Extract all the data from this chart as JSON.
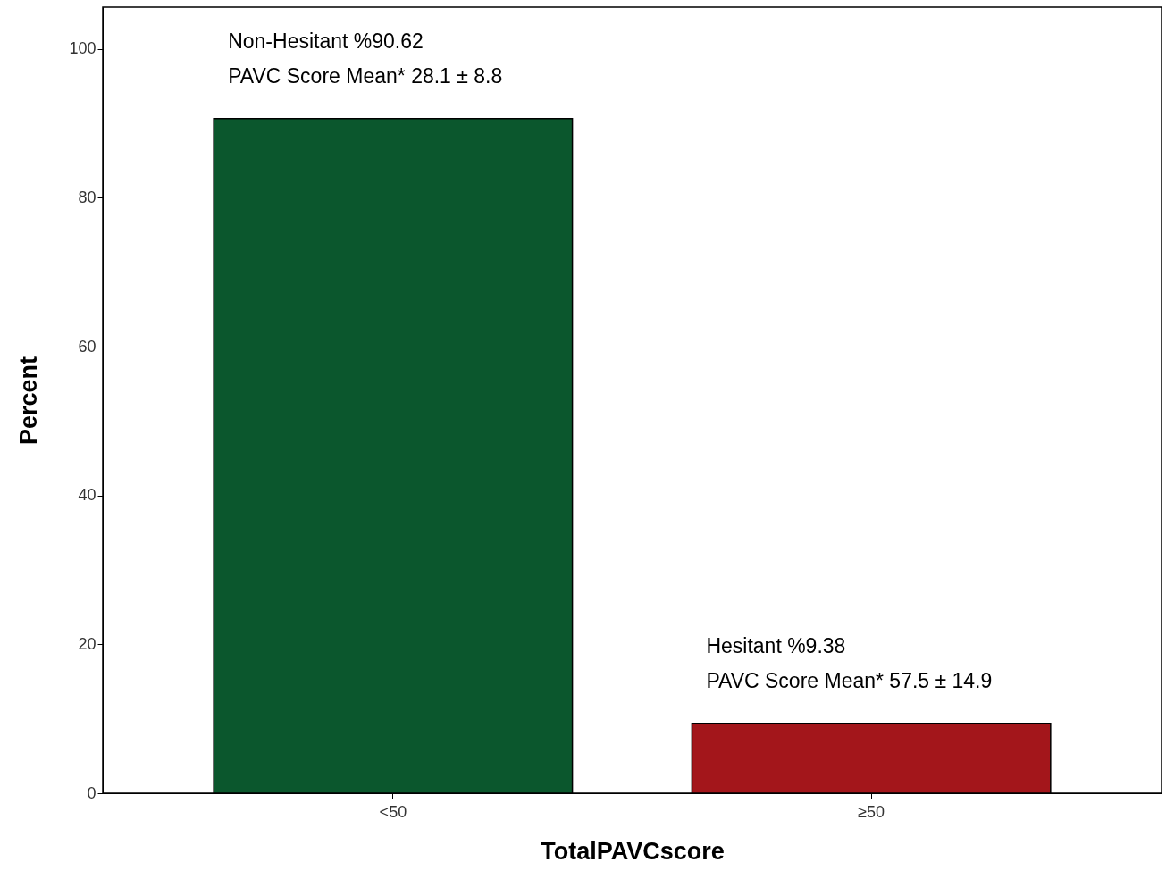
{
  "chart_data": {
    "type": "bar",
    "xlabel": "TotalPAVCscore",
    "ylabel": "Percent",
    "categories": [
      "<50",
      "≥50"
    ],
    "values": [
      90.62,
      9.38
    ],
    "colors": [
      "#0b572d",
      "#a3161b"
    ],
    "ylim": [
      0,
      105.6
    ],
    "yticks": [
      0,
      20,
      40,
      60,
      80,
      100
    ],
    "annotations": [
      "Non-Hesitant %90.62",
      "PAVC Score Mean* 28.1 ± 8.8",
      "Hesitant %9.38",
      "PAVC Score Mean* 57.5 ± 14.9"
    ]
  }
}
